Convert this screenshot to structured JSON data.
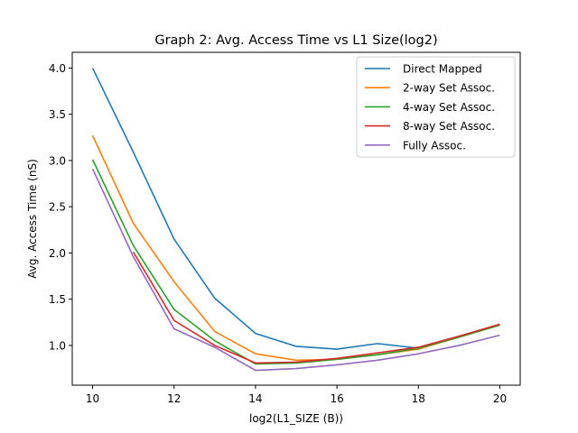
{
  "chart_data": {
    "type": "line",
    "title": "Graph 2: Avg. Access Time vs L1 Size(log2)",
    "xlabel": "log2(L1_SIZE (B))",
    "ylabel": "Avg. Access Time (nS)",
    "xlim": [
      9.5,
      20.5
    ],
    "ylim": [
      0.57,
      4.17
    ],
    "xticks": [
      10,
      12,
      14,
      16,
      18,
      20
    ],
    "yticks": [
      1.0,
      1.5,
      2.0,
      2.5,
      3.0,
      3.5,
      4.0
    ],
    "ytick_labels": [
      "1.0",
      "1.5",
      "2.0",
      "2.5",
      "3.0",
      "3.5",
      "4.0"
    ],
    "grid": false,
    "legend_position": "top-right",
    "series": [
      {
        "name": "Direct Mapped",
        "color": "#1f77b4",
        "x": [
          10,
          11,
          12,
          13,
          14,
          15,
          16,
          17,
          18
        ],
        "y": [
          4.0,
          3.09,
          2.15,
          1.51,
          1.13,
          0.99,
          0.96,
          1.02,
          0.97
        ]
      },
      {
        "name": "2-way Set Assoc.",
        "color": "#ff7f0e",
        "x": [
          10,
          11,
          12,
          13,
          14,
          15,
          16,
          17,
          18,
          19,
          20
        ],
        "y": [
          3.27,
          2.32,
          1.69,
          1.15,
          0.91,
          0.84,
          0.85,
          0.9,
          0.96,
          1.09,
          1.22
        ]
      },
      {
        "name": "4-way Set Assoc.",
        "color": "#2ca02c",
        "x": [
          10,
          11,
          12,
          13,
          14,
          15,
          16,
          17,
          18,
          19,
          20
        ],
        "y": [
          3.01,
          2.08,
          1.39,
          1.05,
          0.8,
          0.81,
          0.85,
          0.9,
          0.97,
          1.09,
          1.22
        ]
      },
      {
        "name": "8-way Set Assoc.",
        "color": "#d62728",
        "x": [
          11,
          12,
          13,
          14,
          15,
          16,
          17,
          18,
          19,
          20
        ],
        "y": [
          2.01,
          1.27,
          1.0,
          0.81,
          0.82,
          0.86,
          0.92,
          0.98,
          1.1,
          1.23
        ]
      },
      {
        "name": "Fully Assoc.",
        "color": "#9467bd",
        "x": [
          10,
          11,
          12,
          13,
          14,
          15,
          16,
          17,
          18,
          19,
          20
        ],
        "y": [
          2.91,
          1.96,
          1.18,
          0.98,
          0.73,
          0.75,
          0.79,
          0.84,
          0.91,
          1.0,
          1.11
        ]
      }
    ]
  }
}
